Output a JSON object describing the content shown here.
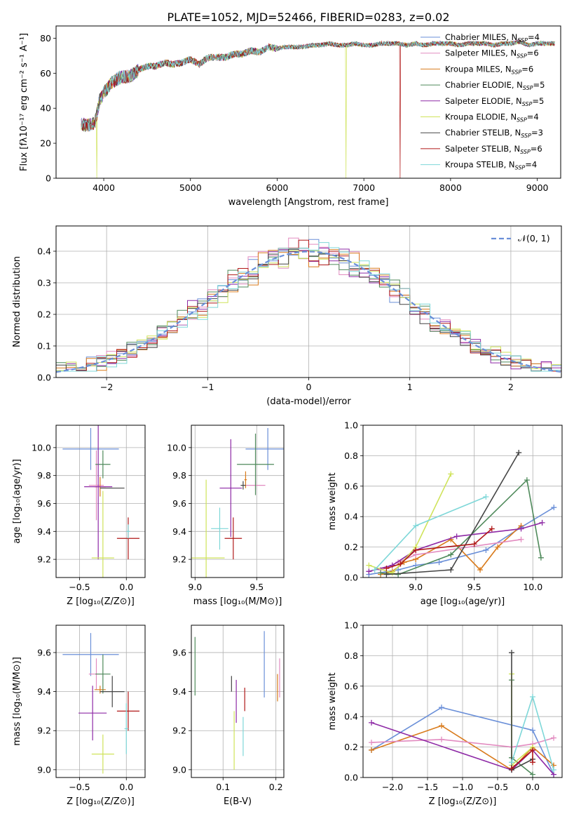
{
  "title": "PLATE=1052, MJD=52466, FIBERID=0283, z=0.02",
  "colors": {
    "chabrier_miles": "#6a8fd8",
    "salpeter_miles": "#e28bc0",
    "kroupa_miles": "#d97b1c",
    "chabrier_elodie": "#4f8a5b",
    "salpeter_elodie": "#8e2aa6",
    "kroupa_elodie": "#cfe35a",
    "chabrier_stelib": "#454545",
    "salpeter_stelib": "#b01818",
    "kroupa_stelib": "#7ed7d8"
  },
  "chart_data": [
    {
      "id": "spectrum",
      "type": "line",
      "xlabel": "wavelength [Angstrom, rest frame]",
      "ylabel": "Flux [fλ10⁻¹⁷ erg cm⁻² s⁻¹ A⁻¹]",
      "xlim": [
        3450,
        9270
      ],
      "ylim": [
        0,
        87
      ],
      "xticks": [
        "4000",
        "5000",
        "6000",
        "7000",
        "8000",
        "9000"
      ],
      "yticks": [
        "0",
        "20",
        "40",
        "60",
        "80"
      ],
      "legend_position": "top-right",
      "legend": [
        {
          "label": "Chabrier MILES, N",
          "sub": "SSP",
          "suffix": "=4"
        },
        {
          "label": "Salpeter MILES, N",
          "sub": "SSP",
          "suffix": "=6"
        },
        {
          "label": "Kroupa MILES, N",
          "sub": "SSP",
          "suffix": "=6"
        },
        {
          "label": "Chabrier ELODIE, N",
          "sub": "SSP",
          "suffix": "=5"
        },
        {
          "label": "Salpeter ELODIE, N",
          "sub": "SSP",
          "suffix": "=5"
        },
        {
          "label": "Kroupa ELODIE, N",
          "sub": "SSP",
          "suffix": "=4"
        },
        {
          "label": "Chabrier STELIB, N",
          "sub": "SSP",
          "suffix": "=3"
        },
        {
          "label": "Salpeter STELIB, N",
          "sub": "SSP",
          "suffix": "=6"
        },
        {
          "label": "Kroupa STELIB, N",
          "sub": "SSP",
          "suffix": "=4"
        }
      ],
      "x": [
        3740,
        3800,
        3900,
        3950,
        4000,
        4100,
        4200,
        4300,
        4400,
        4500,
        4600,
        4700,
        4800,
        4900,
        5000,
        5100,
        5200,
        5300,
        5400,
        5500,
        5600,
        5700,
        5800,
        5900,
        6000,
        6100,
        6200,
        6300,
        6400,
        6500,
        6600,
        6700,
        6800,
        6900,
        7000,
        7100,
        7200,
        7300,
        7400,
        7500,
        7600,
        7700,
        7800,
        7900,
        8000,
        8100,
        8200,
        8300,
        8400,
        8500,
        8600,
        8700,
        8800,
        8900,
        9000,
        9100,
        9200
      ],
      "y": [
        31,
        30,
        32,
        44,
        49,
        55,
        58,
        58,
        62,
        64,
        64,
        66,
        65,
        66,
        68,
        65,
        69,
        69,
        69,
        71,
        71,
        73,
        72,
        75,
        74,
        75,
        75,
        75,
        76,
        76,
        77,
        76,
        76,
        77,
        76,
        76,
        77,
        77,
        77,
        76,
        77,
        76,
        77,
        77,
        77,
        76,
        77,
        77,
        77,
        76,
        77,
        77,
        78,
        76,
        77,
        77,
        77
      ],
      "dips": [
        {
          "series": "kroupa_elodie",
          "x": 3920,
          "y": 0
        },
        {
          "series": "kroupa_elodie",
          "x": 6795,
          "y": 0
        },
        {
          "series": "salpeter_stelib",
          "x": 7420,
          "y": 0
        }
      ]
    },
    {
      "id": "residuals",
      "type": "line",
      "xlabel": "(data-model)/error",
      "ylabel": "Normed distribution",
      "xlim": [
        -2.5,
        2.5
      ],
      "ylim": [
        0,
        0.48
      ],
      "xticks": [
        "−2",
        "−1",
        "0",
        "1",
        "2"
      ],
      "yticks": [
        "0.0",
        "0.1",
        "0.2",
        "0.3",
        "0.4"
      ],
      "grid": true,
      "legend_position": "top-right",
      "legend": "𝒩(0, 1)",
      "gaussian": {
        "mu": 0,
        "sigma": 1,
        "color": "#6a8fd8"
      },
      "bin_width": 0.1
    },
    {
      "id": "age_Z",
      "type": "scatter",
      "xlabel": "Z [log₁₀(Z/Z⊙)]",
      "ylabel": "age  [log₁₀(age/yr)]",
      "xlim": [
        -0.75,
        0.2
      ],
      "ylim": [
        9.07,
        10.16
      ],
      "xticks": [
        "−0.5",
        "0.0"
      ],
      "yticks": [
        "9.2",
        "9.4",
        "9.6",
        "9.8",
        "10.0"
      ],
      "grid": true,
      "points": [
        {
          "s": "chabrier_miles",
          "x": -0.38,
          "xe": 0.3,
          "y": 9.99,
          "ye": 0.15
        },
        {
          "s": "salpeter_miles",
          "x": -0.32,
          "xe": 0.08,
          "y": 9.73,
          "ye": 0.25
        },
        {
          "s": "kroupa_miles",
          "x": -0.28,
          "xe": 0.06,
          "y": 9.72,
          "ye": 0.07
        },
        {
          "s": "chabrier_elodie",
          "x": -0.25,
          "xe": 0.08,
          "y": 9.88,
          "ye": 0.1
        },
        {
          "s": "salpeter_elodie",
          "x": -0.3,
          "xe": 0.15,
          "y": 9.72,
          "ye": 0.52
        },
        {
          "s": "kroupa_elodie",
          "x": -0.25,
          "xe": 0.12,
          "y": 9.21,
          "ye": 0.48
        },
        {
          "s": "chabrier_stelib",
          "x": -0.15,
          "xe": 0.13,
          "y": 9.71,
          "ye": 0.0
        },
        {
          "s": "salpeter_stelib",
          "x": 0.02,
          "xe": 0.12,
          "y": 9.35,
          "ye": 0.15
        },
        {
          "s": "kroupa_stelib",
          "x": 0.02,
          "xe": 0.02,
          "y": 9.4,
          "ye": 0.05
        }
      ]
    },
    {
      "id": "age_mass",
      "type": "scatter",
      "xlabel": "mass [log₁₀(M/M⊙)]",
      "xlim": [
        8.97,
        9.72
      ],
      "ylim": [
        9.07,
        10.16
      ],
      "xticks": [
        "9.0",
        "9.5"
      ],
      "yticks": [
        "9.2",
        "9.4",
        "9.6",
        "9.8",
        "10.0"
      ],
      "grid": true,
      "points": [
        {
          "s": "chabrier_miles",
          "x": 9.59,
          "xe": 0.18,
          "y": 9.99,
          "ye": 0.15
        },
        {
          "s": "salpeter_miles",
          "x": 9.49,
          "xe": 0.08,
          "y": 9.73,
          "ye": 0.03
        },
        {
          "s": "kroupa_miles",
          "x": 9.41,
          "xe": 0.01,
          "y": 9.77,
          "ye": 0.06
        },
        {
          "s": "chabrier_elodie",
          "x": 9.49,
          "xe": 0.15,
          "y": 9.88,
          "ye": 0.22
        },
        {
          "s": "salpeter_elodie",
          "x": 9.29,
          "xe": 0.09,
          "y": 9.71,
          "ye": 0.35
        },
        {
          "s": "kroupa_elodie",
          "x": 9.09,
          "xe": 0.15,
          "y": 9.21,
          "ye": 0.56
        },
        {
          "s": "chabrier_stelib",
          "x": 9.39,
          "xe": 0.02,
          "y": 9.73,
          "ye": 0.03
        },
        {
          "s": "salpeter_stelib",
          "x": 9.31,
          "xe": 0.07,
          "y": 9.35,
          "ye": 0.15
        },
        {
          "s": "kroupa_stelib",
          "x": 9.2,
          "xe": 0.07,
          "y": 9.42,
          "ye": 0.15
        }
      ]
    },
    {
      "id": "weight_age",
      "type": "line",
      "xlabel": "age  [log₁₀(age/yr)]",
      "ylabel": "mass weight",
      "xlim": [
        8.55,
        10.25
      ],
      "ylim": [
        0,
        1.0
      ],
      "xticks": [
        "9.0",
        "9.5",
        "10.0"
      ],
      "yticks": [
        "0.0",
        "0.2",
        "0.4",
        "0.6",
        "0.8",
        "1.0"
      ],
      "grid": true,
      "series": [
        {
          "s": "chabrier_miles",
          "x": [
            8.6,
            8.85,
            9.0,
            9.2,
            9.6,
            9.9,
            10.18
          ],
          "y": [
            0.02,
            0.05,
            0.08,
            0.1,
            0.18,
            0.33,
            0.46
          ]
        },
        {
          "s": "kroupa_miles",
          "x": [
            8.7,
            8.8,
            8.9,
            9.0,
            9.3,
            9.55,
            9.7,
            9.9
          ],
          "y": [
            0.02,
            0.04,
            0.1,
            0.12,
            0.25,
            0.05,
            0.2,
            0.34
          ]
        },
        {
          "s": "salpeter_miles",
          "x": [
            8.7,
            8.85,
            9.0,
            9.9
          ],
          "y": [
            0.05,
            0.1,
            0.15,
            0.25
          ]
        },
        {
          "s": "chabrier_elodie",
          "x": [
            8.7,
            8.85,
            9.3,
            9.95,
            10.07
          ],
          "y": [
            0.03,
            0.02,
            0.15,
            0.64,
            0.13
          ]
        },
        {
          "s": "salpeter_elodie",
          "x": [
            8.6,
            8.8,
            9.0,
            9.35,
            9.9,
            10.08
          ],
          "y": [
            0.04,
            0.08,
            0.18,
            0.27,
            0.32,
            0.36
          ]
        },
        {
          "s": "kroupa_elodie",
          "x": [
            8.6,
            8.8,
            9.0,
            9.3
          ],
          "y": [
            0.08,
            0.03,
            0.2,
            0.68
          ]
        },
        {
          "s": "chabrier_stelib",
          "x": [
            8.75,
            9.3,
            9.88
          ],
          "y": [
            0.02,
            0.05,
            0.82
          ]
        },
        {
          "s": "salpeter_stelib",
          "x": [
            8.75,
            8.87,
            9.0,
            9.5,
            9.65
          ],
          "y": [
            0.06,
            0.09,
            0.18,
            0.22,
            0.32
          ]
        },
        {
          "s": "kroupa_stelib",
          "x": [
            8.65,
            9.0,
            9.6
          ],
          "y": [
            0.05,
            0.34,
            0.53
          ]
        }
      ]
    },
    {
      "id": "mass_Z",
      "type": "scatter",
      "xlabel": "Z [log₁₀(Z/Z⊙)]",
      "ylabel": "mass [log₁₀(M/M⊙)]",
      "xlim": [
        -0.75,
        0.2
      ],
      "ylim": [
        8.96,
        9.74
      ],
      "xticks": [
        "−0.5",
        "0.0"
      ],
      "yticks": [
        "9.0",
        "9.2",
        "9.4",
        "9.6"
      ],
      "grid": true,
      "points": [
        {
          "s": "chabrier_miles",
          "x": -0.38,
          "xe": 0.3,
          "y": 9.59,
          "ye": 0.11
        },
        {
          "s": "salpeter_miles",
          "x": -0.32,
          "xe": 0.08,
          "y": 9.49,
          "ye": 0.08
        },
        {
          "s": "kroupa_miles",
          "x": -0.28,
          "xe": 0.06,
          "y": 9.41,
          "ye": 0.02
        },
        {
          "s": "chabrier_elodie",
          "x": -0.25,
          "xe": 0.08,
          "y": 9.49,
          "ye": 0.1
        },
        {
          "s": "salpeter_elodie",
          "x": -0.36,
          "xe": 0.15,
          "y": 9.29,
          "ye": 0.14
        },
        {
          "s": "kroupa_elodie",
          "x": -0.25,
          "xe": 0.12,
          "y": 9.08,
          "ye": 0.1
        },
        {
          "s": "chabrier_stelib",
          "x": -0.15,
          "xe": 0.13,
          "y": 9.4,
          "ye": 0.08
        },
        {
          "s": "salpeter_stelib",
          "x": 0.02,
          "xe": 0.12,
          "y": 9.3,
          "ye": 0.1
        },
        {
          "s": "kroupa_stelib",
          "x": 0.0,
          "xe": 0.02,
          "y": 9.21,
          "ye": 0.13
        }
      ]
    },
    {
      "id": "mass_ebv",
      "type": "scatter",
      "xlabel": "E(B-V)",
      "xlim": [
        0.04,
        0.215
      ],
      "ylim": [
        8.96,
        9.74
      ],
      "xticks": [
        "0.1",
        "0.2"
      ],
      "yticks": [
        "9.0",
        "9.2",
        "9.4",
        "9.6"
      ],
      "grid": true,
      "points": [
        {
          "s": "chabrier_miles",
          "x": 0.178,
          "xe": 0.0,
          "y": 9.54,
          "ye": 0.17
        },
        {
          "s": "salpeter_miles",
          "x": 0.207,
          "xe": 0.0,
          "y": 9.47,
          "ye": 0.1
        },
        {
          "s": "kroupa_miles",
          "x": 0.203,
          "xe": 0.0,
          "y": 9.42,
          "ye": 0.07
        },
        {
          "s": "chabrier_elodie",
          "x": 0.047,
          "xe": 0.0,
          "y": 9.53,
          "ye": 0.15
        },
        {
          "s": "salpeter_elodie",
          "x": 0.125,
          "xe": 0.0,
          "y": 9.35,
          "ye": 0.11
        },
        {
          "s": "kroupa_elodie",
          "x": 0.121,
          "xe": 0.0,
          "y": 9.15,
          "ye": 0.15
        },
        {
          "s": "chabrier_stelib",
          "x": 0.116,
          "xe": 0.0,
          "y": 9.44,
          "ye": 0.04
        },
        {
          "s": "salpeter_stelib",
          "x": 0.141,
          "xe": 0.0,
          "y": 9.36,
          "ye": 0.06
        },
        {
          "s": "kroupa_stelib",
          "x": 0.138,
          "xe": 0.0,
          "y": 9.17,
          "ye": 0.1
        }
      ]
    },
    {
      "id": "weight_Z",
      "type": "line",
      "xlabel": "Z [log₁₀(Z/Z⊙)]",
      "ylabel": "mass weight",
      "xlim": [
        -2.42,
        0.42
      ],
      "ylim": [
        0,
        1.0
      ],
      "xticks": [
        "−2.0",
        "−1.5",
        "−1.0",
        "−0.5",
        "0.0"
      ],
      "yticks": [
        "0.0",
        "0.2",
        "0.4",
        "0.6",
        "0.8",
        "1.0"
      ],
      "grid": true,
      "series": [
        {
          "s": "chabrier_miles",
          "x": [
            -2.3,
            -1.3,
            0.0,
            0.3
          ],
          "y": [
            0.18,
            0.46,
            0.31,
            0.02
          ]
        },
        {
          "s": "kroupa_miles",
          "x": [
            -2.3,
            -1.3,
            -0.3,
            0.0,
            0.3
          ],
          "y": [
            0.18,
            0.34,
            0.05,
            0.2,
            0.08
          ]
        },
        {
          "s": "salpeter_miles",
          "x": [
            -2.3,
            -1.3,
            -0.3,
            0.0,
            0.3
          ],
          "y": [
            0.23,
            0.25,
            0.2,
            0.22,
            0.26
          ]
        },
        {
          "s": "chabrier_elodie",
          "x": [
            -0.3,
            -0.3,
            0.0
          ],
          "y": [
            0.64,
            0.13,
            0.02
          ]
        },
        {
          "s": "salpeter_elodie",
          "x": [
            -2.3,
            -0.3,
            0.0,
            0.3
          ],
          "y": [
            0.36,
            0.05,
            0.18,
            0.02
          ]
        },
        {
          "s": "kroupa_elodie",
          "x": [
            -0.3,
            -0.3,
            0.0
          ],
          "y": [
            0.68,
            0.08,
            0.2
          ]
        },
        {
          "s": "chabrier_stelib",
          "x": [
            -0.3,
            -0.3,
            0.0
          ],
          "y": [
            0.82,
            0.05,
            0.12
          ]
        },
        {
          "s": "salpeter_stelib",
          "x": [
            -0.3,
            0.0,
            0.0
          ],
          "y": [
            0.06,
            0.18,
            0.1
          ]
        },
        {
          "s": "kroupa_stelib",
          "x": [
            -0.3,
            0.0,
            0.3
          ],
          "y": [
            0.1,
            0.53,
            0.05
          ]
        }
      ]
    }
  ]
}
